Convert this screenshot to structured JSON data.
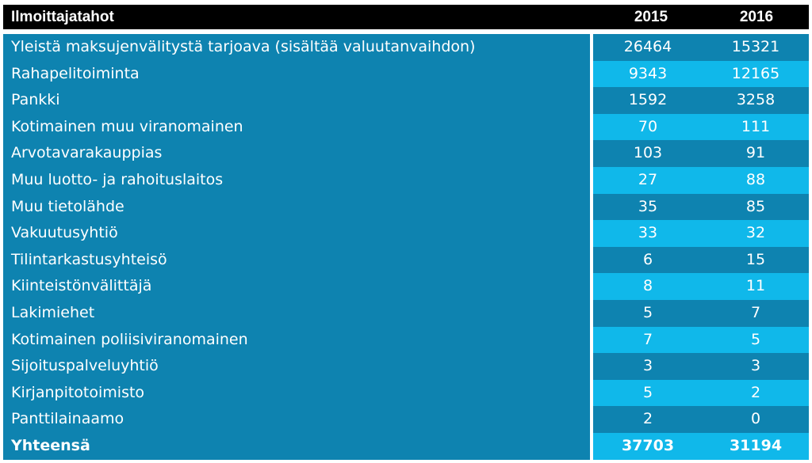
{
  "table": {
    "header": {
      "label": "Ilmoittajatahot",
      "year1": "2015",
      "year2": "2016"
    },
    "rows": [
      {
        "label": "Yleistä maksujenvälitystä tarjoava (sisältää valuutanvaihdon)",
        "v2015": "26464",
        "v2016": "15321"
      },
      {
        "label": "Rahapelitoiminta",
        "v2015": "9343",
        "v2016": "12165"
      },
      {
        "label": "Pankki",
        "v2015": "1592",
        "v2016": "3258"
      },
      {
        "label": "Kotimainen muu viranomainen",
        "v2015": "70",
        "v2016": "111"
      },
      {
        "label": "Arvotavarakauppias",
        "v2015": "103",
        "v2016": "91"
      },
      {
        "label": "Muu luotto- ja rahoituslaitos",
        "v2015": "27",
        "v2016": "88"
      },
      {
        "label": "Muu tietolähde",
        "v2015": "35",
        "v2016": "85"
      },
      {
        "label": "Vakuutusyhtiö",
        "v2015": "33",
        "v2016": "32"
      },
      {
        "label": "Tilintarkastusyhteisö",
        "v2015": "6",
        "v2016": "15"
      },
      {
        "label": "Kiinteistönvälittäjä",
        "v2015": "8",
        "v2016": "11"
      },
      {
        "label": "Lakimiehet",
        "v2015": "5",
        "v2016": "7"
      },
      {
        "label": "Kotimainen poliisiviranomainen",
        "v2015": "7",
        "v2016": "5"
      },
      {
        "label": "Sijoituspalveluyhtiö",
        "v2015": "3",
        "v2016": "3"
      },
      {
        "label": "Kirjanpitotoimisto",
        "v2015": "5",
        "v2016": "2"
      },
      {
        "label": "Panttilainaamo",
        "v2015": "2",
        "v2016": "0"
      }
    ],
    "total": {
      "label": "Yhteensä",
      "v2015": "37703",
      "v2016": "31194"
    }
  },
  "colors": {
    "header_bg": "#000000",
    "row_dark": "#0e83b0",
    "row_light": "#10b8ea",
    "text": "#ffffff"
  }
}
